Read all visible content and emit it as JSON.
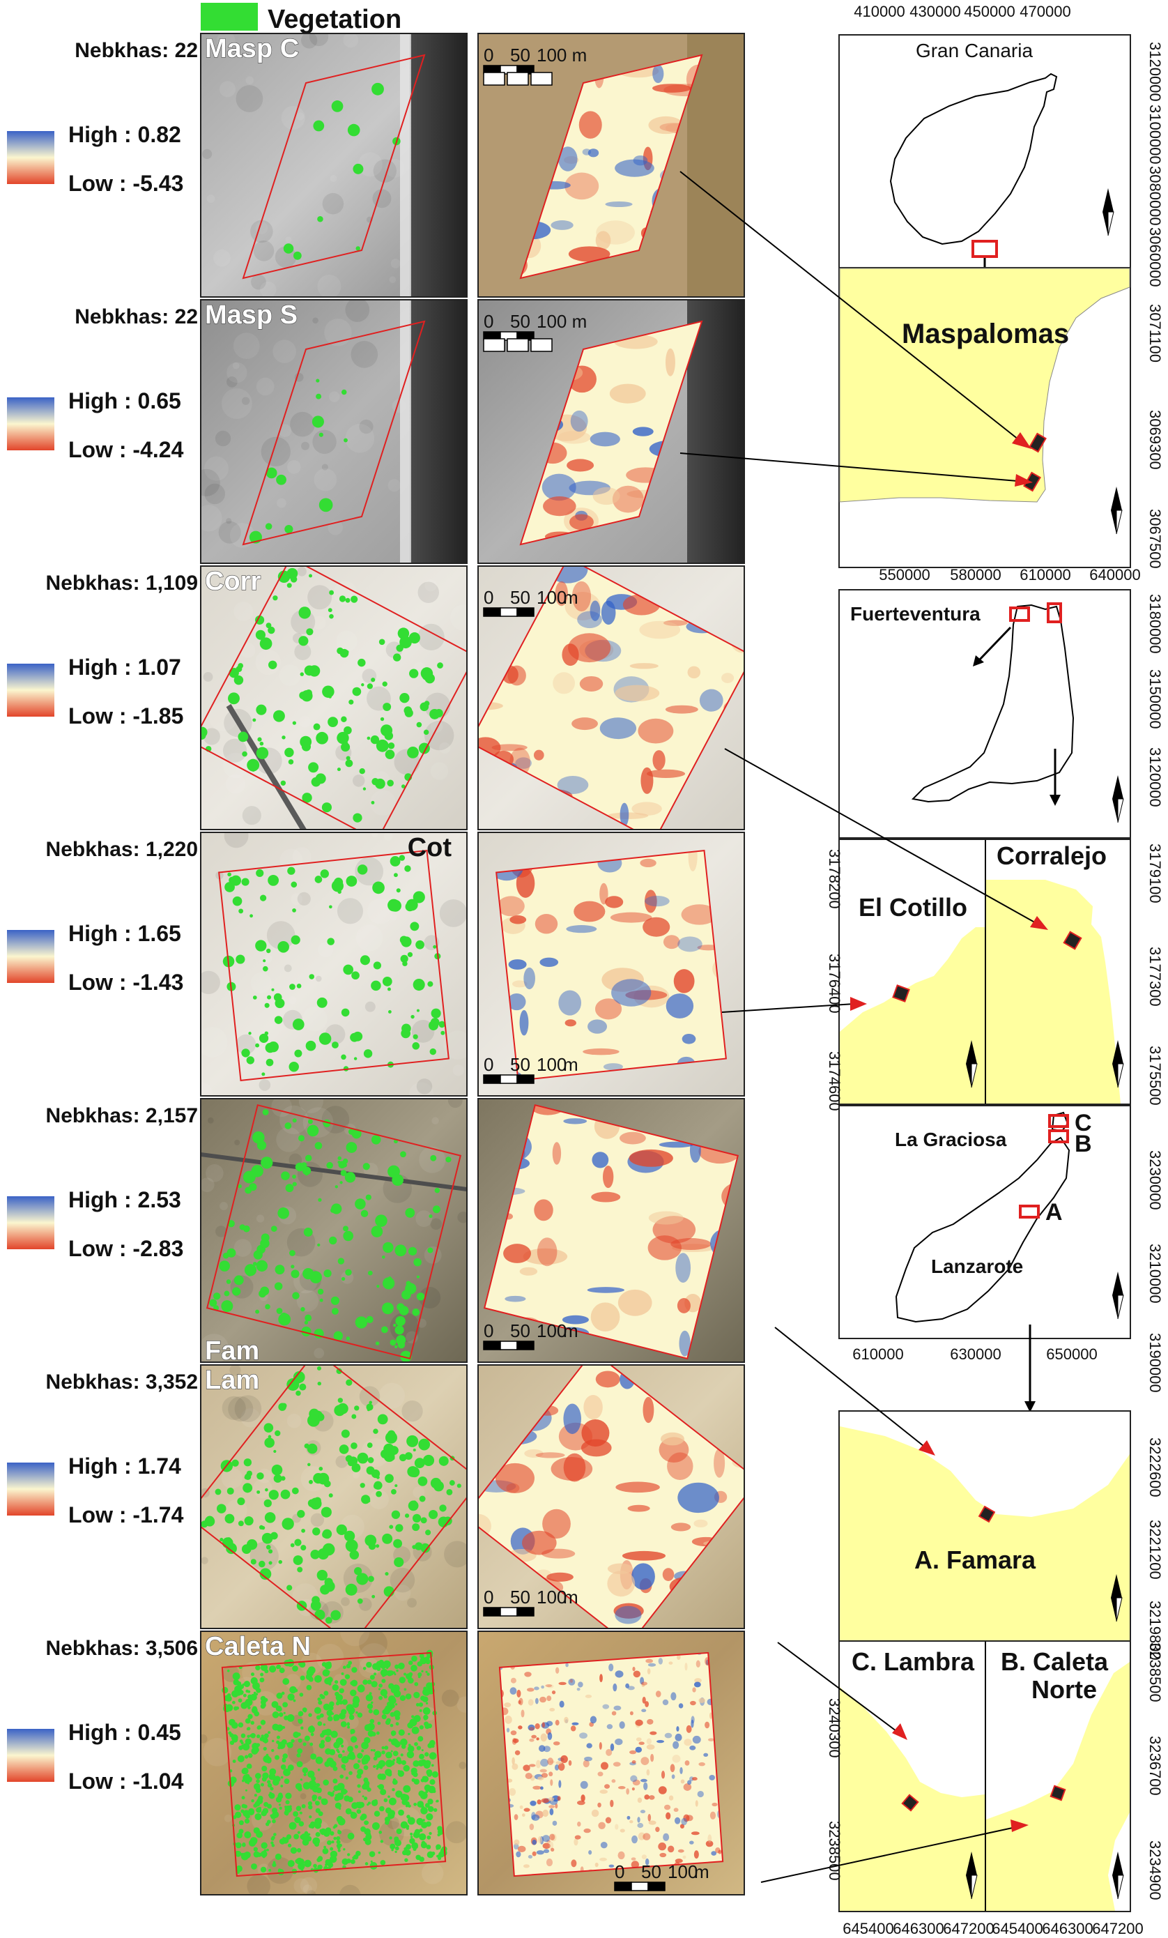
{
  "legend": {
    "vegetation_label": "Vegetation",
    "vegetation_color": "#33dd33"
  },
  "colors": {
    "high": "#3060c8",
    "mid": "#fbf6cf",
    "low": "#e2452a",
    "land": "#ffff9f",
    "outline": "#e02020"
  },
  "rows": [
    {
      "nebkhas": "Nebkhas: 22",
      "site": "Masp C",
      "high": "High : 0.82",
      "low": "Low : -5.43",
      "scale": [
        "0",
        "50",
        "100 m"
      ],
      "bg": "sand",
      "spots": 10,
      "rot": -6,
      "shape": "para"
    },
    {
      "nebkhas": "Nebkhas: 22",
      "site": "Masp S",
      "high": "High : 0.65",
      "low": "Low : -4.24",
      "scale": [
        "0",
        "50",
        "100 m"
      ],
      "bg": "grey",
      "spots": 12,
      "rot": -6,
      "shape": "para"
    },
    {
      "nebkhas": "Nebkhas: 1,109",
      "site": "Corr",
      "high": "High : 1.07",
      "low": "Low : -1.85",
      "scale": [
        "0",
        "50",
        "100",
        "m"
      ],
      "bg": "light",
      "spots": 120,
      "rot": 28,
      "shape": "sq"
    },
    {
      "nebkhas": "Nebkhas: 1,220",
      "site": "Cot",
      "high": "High : 1.65",
      "low": "Low : -1.43",
      "scale": [
        "0",
        "50",
        "100",
        "m"
      ],
      "bg": "light",
      "spots": 110,
      "rot": -6,
      "shape": "sq"
    },
    {
      "nebkhas": "Nebkhas: 2,157",
      "site": "Fam",
      "high": "High : 2.53",
      "low": "Low : -2.83",
      "scale": [
        "0",
        "50",
        "100",
        "m"
      ],
      "bg": "dark",
      "spots": 150,
      "rot": 14,
      "shape": "sq"
    },
    {
      "nebkhas": "Nebkhas: 3,352",
      "site": "Lam",
      "high": "High : 1.74",
      "low": "Low : -1.74",
      "scale": [
        "0",
        "50",
        "100",
        "m"
      ],
      "bg": "sand2",
      "spots": 200,
      "rot": 38,
      "shape": "sq"
    },
    {
      "nebkhas": "Nebkhas: 3,506",
      "site": "Caleta N",
      "high": "High : 0.45",
      "low": "Low : -1.04",
      "scale": [
        "0",
        "50",
        "100",
        "m"
      ],
      "bg": "dark",
      "spots": 900,
      "rot": -4,
      "shape": "sq"
    }
  ],
  "maps": {
    "gran_canaria": {
      "title": "Gran Canaria",
      "x_ticks": [
        "410000",
        "430000",
        "450000",
        "470000"
      ],
      "y_ticks": [
        "3120000",
        "3100000",
        "3080000",
        "3060000"
      ]
    },
    "maspalomas": {
      "title": "Maspalomas",
      "y_ticks": [
        "3071100",
        "3069300",
        "3067500"
      ]
    },
    "fuerteventura": {
      "title": "Fuerteventura",
      "x_ticks": [
        "550000",
        "580000",
        "610000",
        "640000"
      ],
      "y_ticks": [
        "3180000",
        "3150000",
        "3120000"
      ]
    },
    "el_cotillo": {
      "title": "El Cotillo",
      "y_ticks": [
        "3178200",
        "3176400",
        "3174600"
      ]
    },
    "corralejo": {
      "title": "Corralejo",
      "y_ticks": [
        "3179100",
        "3177300",
        "3175500"
      ]
    },
    "lanzarote": {
      "title": "Lanzarote",
      "island2": "La Graciosa",
      "marks": [
        "C",
        "B",
        "A"
      ],
      "x_ticks": [
        "610000",
        "630000",
        "650000"
      ],
      "y_ticks": [
        "3230000",
        "3210000",
        "3190000"
      ]
    },
    "famara": {
      "title": "A. Famara",
      "y_ticks": [
        "3222600",
        "3221200",
        "3219800"
      ]
    },
    "lambra": {
      "title": "C. Lambra",
      "y_ticks": [
        "3240300",
        "3238500"
      ],
      "x_ticks": [
        "645400",
        "646300",
        "647200"
      ]
    },
    "caleta": {
      "title": "B. Caleta",
      "title2": "Norte",
      "y_ticks": [
        "3238500",
        "3236700",
        "3234900"
      ],
      "x_ticks": [
        "645400",
        "646300",
        "647200"
      ]
    }
  }
}
